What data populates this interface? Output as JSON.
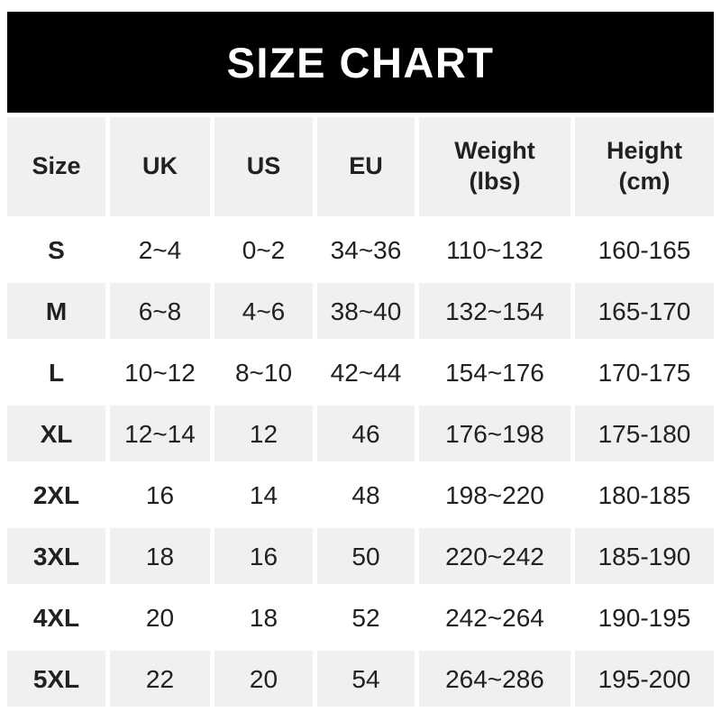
{
  "banner": {
    "title": "SIZE CHART"
  },
  "table": {
    "columns": [
      {
        "label": "Size",
        "sublabel": ""
      },
      {
        "label": "UK",
        "sublabel": ""
      },
      {
        "label": "US",
        "sublabel": ""
      },
      {
        "label": "EU",
        "sublabel": ""
      },
      {
        "label": "Weight",
        "sublabel": "(lbs)"
      },
      {
        "label": "Height",
        "sublabel": "(cm)"
      }
    ],
    "rows": [
      {
        "size": "S",
        "uk": "2~4",
        "us": "0~2",
        "eu": "34~36",
        "weight": "110~132",
        "height": "160-165"
      },
      {
        "size": "M",
        "uk": "6~8",
        "us": "4~6",
        "eu": "38~40",
        "weight": "132~154",
        "height": "165-170"
      },
      {
        "size": "L",
        "uk": "10~12",
        "us": "8~10",
        "eu": "42~44",
        "weight": "154~176",
        "height": "170-175"
      },
      {
        "size": "XL",
        "uk": "12~14",
        "us": "12",
        "eu": "46",
        "weight": "176~198",
        "height": "175-180"
      },
      {
        "size": "2XL",
        "uk": "16",
        "us": "14",
        "eu": "48",
        "weight": "198~220",
        "height": "180-185"
      },
      {
        "size": "3XL",
        "uk": "18",
        "us": "16",
        "eu": "50",
        "weight": "220~242",
        "height": "185-190"
      },
      {
        "size": "4XL",
        "uk": "20",
        "us": "18",
        "eu": "52",
        "weight": "242~264",
        "height": "190-195"
      },
      {
        "size": "5XL",
        "uk": "22",
        "us": "20",
        "eu": "54",
        "weight": "264~286",
        "height": "195-200"
      }
    ]
  },
  "colors": {
    "banner_bg": "#000000",
    "banner_text": "#ffffff",
    "row_bg": "#ffffff",
    "row_alt_bg": "#f0f0f0",
    "text": "#212121"
  },
  "chart_data": {
    "type": "table",
    "title": "SIZE CHART",
    "columns": [
      "Size",
      "UK",
      "US",
      "EU",
      "Weight (lbs)",
      "Height (cm)"
    ],
    "rows": [
      [
        "S",
        "2~4",
        "0~2",
        "34~36",
        "110~132",
        "160-165"
      ],
      [
        "M",
        "6~8",
        "4~6",
        "38~40",
        "132~154",
        "165-170"
      ],
      [
        "L",
        "10~12",
        "8~10",
        "42~44",
        "154~176",
        "170-175"
      ],
      [
        "XL",
        "12~14",
        "12",
        "46",
        "176~198",
        "175-180"
      ],
      [
        "2XL",
        "16",
        "14",
        "48",
        "198~220",
        "180-185"
      ],
      [
        "3XL",
        "18",
        "16",
        "50",
        "220~242",
        "185-190"
      ],
      [
        "4XL",
        "20",
        "18",
        "52",
        "242~264",
        "190-195"
      ],
      [
        "5XL",
        "22",
        "20",
        "54",
        "264~286",
        "195-200"
      ]
    ]
  }
}
